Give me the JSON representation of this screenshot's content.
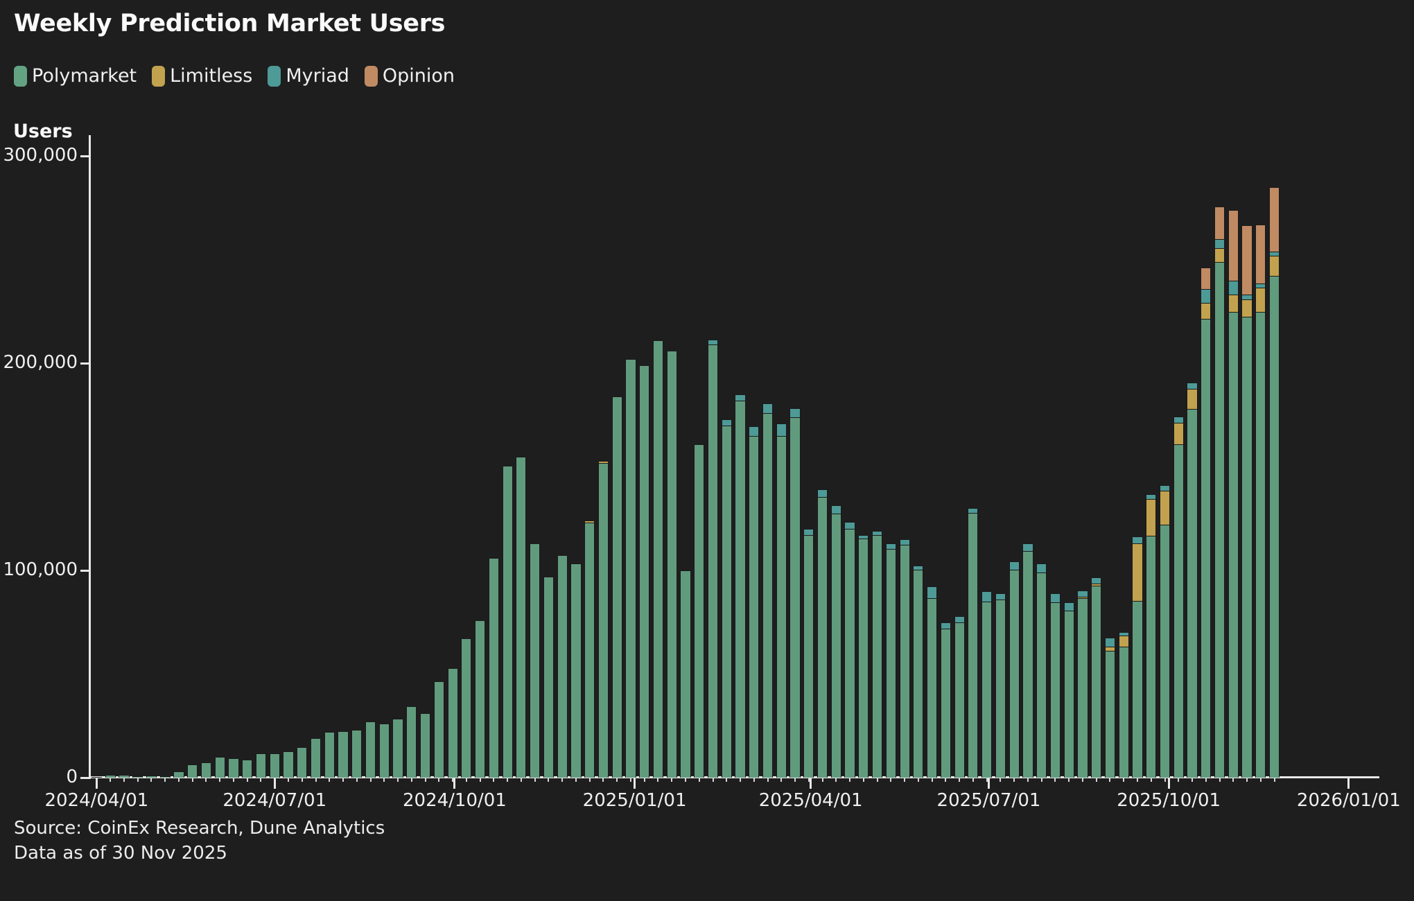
{
  "title": "Weekly Prediction Market Users",
  "legend": [
    {
      "name": "Polymarket",
      "color": "#63A383"
    },
    {
      "name": "Limitless",
      "color": "#C2A24E"
    },
    {
      "name": "Myriad",
      "color": "#4D9A97"
    },
    {
      "name": "Opinion",
      "color": "#C08A63"
    }
  ],
  "source_line1": "Source: CoinEx Research, Dune Analytics",
  "source_line2": "Data as of 30 Nov 2025",
  "chart_data": {
    "type": "bar",
    "stacked": true,
    "title": "Weekly Prediction Market Users",
    "xlabel": "",
    "ylabel": "Users",
    "ylim": [
      0,
      300000
    ],
    "grid": false,
    "legend_position": "top-left",
    "colors": {
      "background": "#1E1E1F",
      "axis": "#E8E8E8",
      "text": "#F2F2F2",
      "Polymarket": "#619B7D",
      "Limitless": "#C2A24E",
      "Myriad": "#4D9A97",
      "Opinion": "#C08A63"
    },
    "y_axis": {
      "title": "Users",
      "ticks": [
        {
          "value": 0,
          "label": "0"
        },
        {
          "value": 100000,
          "label": "100,000"
        },
        {
          "value": 200000,
          "label": "200,000"
        },
        {
          "value": 300000,
          "label": "300,000"
        }
      ]
    },
    "x_axis": {
      "ticks": [
        {
          "date": "2024-04-01",
          "label": "2024/04/01"
        },
        {
          "date": "2024-07-01",
          "label": "2024/07/01"
        },
        {
          "date": "2024-10-01",
          "label": "2024/10/01"
        },
        {
          "date": "2025-01-01",
          "label": "2025/01/01"
        },
        {
          "date": "2025-04-01",
          "label": "2025/04/01"
        },
        {
          "date": "2025-07-01",
          "label": "2025/07/01"
        },
        {
          "date": "2025-10-01",
          "label": "2025/10/01"
        },
        {
          "date": "2026-01-01",
          "label": "2026/01/01"
        }
      ]
    },
    "categories": [
      "2024-04-01",
      "2024-04-08",
      "2024-04-15",
      "2024-04-22",
      "2024-04-29",
      "2024-05-06",
      "2024-05-13",
      "2024-05-20",
      "2024-05-27",
      "2024-06-03",
      "2024-06-10",
      "2024-06-17",
      "2024-06-24",
      "2024-07-01",
      "2024-07-08",
      "2024-07-15",
      "2024-07-22",
      "2024-07-29",
      "2024-08-05",
      "2024-08-12",
      "2024-08-19",
      "2024-08-26",
      "2024-09-02",
      "2024-09-09",
      "2024-09-16",
      "2024-09-23",
      "2024-09-30",
      "2024-10-07",
      "2024-10-14",
      "2024-10-21",
      "2024-10-28",
      "2024-11-04",
      "2024-11-11",
      "2024-11-18",
      "2024-11-25",
      "2024-12-02",
      "2024-12-09",
      "2024-12-16",
      "2024-12-23",
      "2024-12-30",
      "2025-01-06",
      "2025-01-13",
      "2025-01-20",
      "2025-01-27",
      "2025-02-03",
      "2025-02-10",
      "2025-02-17",
      "2025-02-24",
      "2025-03-03",
      "2025-03-10",
      "2025-03-17",
      "2025-03-24",
      "2025-03-31",
      "2025-04-07",
      "2025-04-14",
      "2025-04-21",
      "2025-04-28",
      "2025-05-05",
      "2025-05-12",
      "2025-05-19",
      "2025-05-26",
      "2025-06-02",
      "2025-06-09",
      "2025-06-16",
      "2025-06-23",
      "2025-06-30",
      "2025-07-07",
      "2025-07-14",
      "2025-07-21",
      "2025-07-28",
      "2025-08-04",
      "2025-08-11",
      "2025-08-18",
      "2025-08-25",
      "2025-09-01",
      "2025-09-08",
      "2025-09-15",
      "2025-09-22",
      "2025-09-29",
      "2025-10-06",
      "2025-10-13",
      "2025-10-20",
      "2025-10-27",
      "2025-11-03",
      "2025-11-10",
      "2025-11-17",
      "2025-11-24"
    ],
    "series": [
      {
        "name": "Polymarket",
        "values": [
          400,
          1500,
          1500,
          800,
          900,
          700,
          3000,
          6200,
          7500,
          10000,
          9500,
          8800,
          11600,
          11800,
          12700,
          14600,
          19100,
          22100,
          22400,
          23000,
          27100,
          26000,
          28300,
          34300,
          31000,
          46400,
          53000,
          67300,
          76000,
          106000,
          150500,
          155000,
          113000,
          97000,
          107500,
          103500,
          123200,
          152000,
          184000,
          202000,
          199000,
          211000,
          206000,
          100000,
          161000,
          209000,
          170000,
          182000,
          165000,
          176000,
          165000,
          174000,
          117000,
          135500,
          127500,
          120000,
          115500,
          117000,
          110500,
          112500,
          100500,
          86500,
          72000,
          75000,
          127700,
          85000,
          86000,
          100500,
          109300,
          99000,
          84600,
          80600,
          86500,
          92700,
          61200,
          63200,
          85300,
          116700,
          122000,
          161000,
          178000,
          221400,
          248700,
          224700,
          222500,
          224700,
          242200
        ]
      },
      {
        "name": "Limitless",
        "values": [
          0,
          0,
          0,
          0,
          0,
          0,
          0,
          0,
          0,
          0,
          0,
          0,
          0,
          0,
          0,
          0,
          0,
          0,
          0,
          0,
          0,
          0,
          0,
          0,
          0,
          0,
          0,
          0,
          0,
          0,
          0,
          0,
          0,
          0,
          0,
          0,
          800,
          1000,
          0,
          0,
          0,
          0,
          0,
          0,
          0,
          0,
          0,
          0,
          0,
          0,
          0,
          0,
          0,
          0,
          0,
          0,
          0,
          0,
          0,
          0,
          0,
          0,
          0,
          0,
          0,
          0,
          0,
          0,
          0,
          0,
          0,
          0,
          800,
          1000,
          2000,
          5300,
          27800,
          17700,
          16500,
          10400,
          9700,
          7800,
          6700,
          8400,
          8400,
          11700,
          9800
        ]
      },
      {
        "name": "Myriad",
        "values": [
          0,
          0,
          0,
          0,
          0,
          0,
          0,
          0,
          0,
          0,
          0,
          0,
          0,
          0,
          0,
          0,
          0,
          0,
          0,
          0,
          0,
          0,
          0,
          0,
          0,
          0,
          0,
          0,
          0,
          0,
          0,
          0,
          0,
          0,
          0,
          0,
          0,
          0,
          0,
          0,
          0,
          0,
          0,
          0,
          0,
          2500,
          3000,
          3000,
          4500,
          4700,
          6000,
          4200,
          3000,
          3500,
          4000,
          3500,
          1500,
          2000,
          2500,
          2500,
          2000,
          5800,
          3000,
          3000,
          2300,
          5000,
          3000,
          4000,
          3700,
          4300,
          4400,
          4000,
          3000,
          3000,
          4400,
          1700,
          3300,
          2400,
          2500,
          2700,
          3000,
          6700,
          4500,
          6700,
          2200,
          2200,
          1800
        ]
      },
      {
        "name": "Opinion",
        "values": [
          0,
          0,
          0,
          0,
          0,
          0,
          0,
          0,
          0,
          0,
          0,
          0,
          0,
          0,
          0,
          0,
          0,
          0,
          0,
          0,
          0,
          0,
          0,
          0,
          0,
          0,
          0,
          0,
          0,
          0,
          0,
          0,
          0,
          0,
          0,
          0,
          0,
          0,
          0,
          0,
          0,
          0,
          0,
          0,
          0,
          0,
          0,
          0,
          0,
          0,
          0,
          0,
          0,
          0,
          0,
          0,
          0,
          0,
          0,
          0,
          0,
          0,
          0,
          0,
          0,
          0,
          0,
          0,
          0,
          0,
          0,
          0,
          0,
          0,
          0,
          0,
          0,
          0,
          0,
          0,
          0,
          10300,
          15600,
          34200,
          33400,
          28400,
          31300
        ]
      }
    ]
  }
}
